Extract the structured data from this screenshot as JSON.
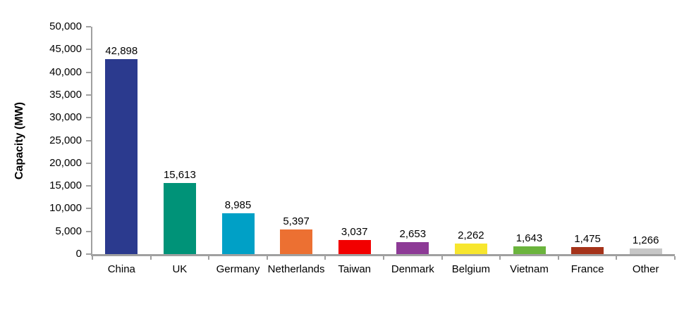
{
  "chart_data": {
    "type": "bar",
    "title": "",
    "xlabel": "",
    "ylabel": "Capacity (MW)",
    "ylim": [
      0,
      50000
    ],
    "ytick_step": 5000,
    "ytick_labels": [
      "50,000",
      "45,000",
      "40,000",
      "35,000",
      "30,000",
      "25,000",
      "20,000",
      "15,000",
      "10,000",
      "5,000",
      "0"
    ],
    "categories": [
      "China",
      "UK",
      "Germany",
      "Netherlands",
      "Taiwan",
      "Denmark",
      "Belgium",
      "Vietnam",
      "France",
      "Other"
    ],
    "values": [
      42898,
      15613,
      8985,
      5397,
      3037,
      2653,
      2262,
      1643,
      1475,
      1266
    ],
    "value_labels": [
      "42,898",
      "15,613",
      "8,985",
      "5,397",
      "3,037",
      "2,653",
      "2,262",
      "1,643",
      "1,475",
      "1,266"
    ],
    "bar_colors": [
      "#2b3a8e",
      "#009378",
      "#00a0c6",
      "#ec7032",
      "#f20000",
      "#8d3a96",
      "#f7e62e",
      "#6bb43d",
      "#a5331a",
      "#c7c7c7"
    ],
    "axis_color": "#a0a0a0",
    "text_color": "#000000",
    "grid": false,
    "legend": false
  }
}
